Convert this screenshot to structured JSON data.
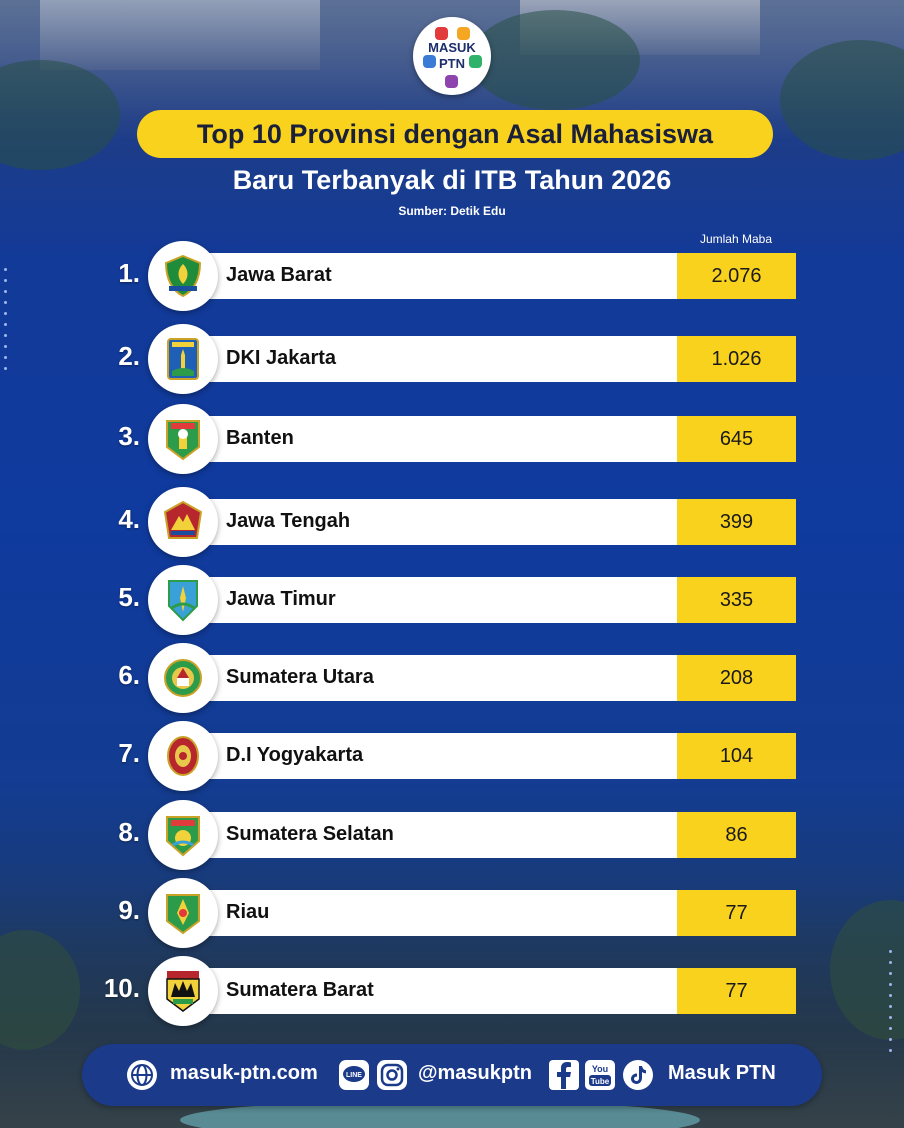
{
  "logo": {
    "line1": "MASUK",
    "line2": "PTN"
  },
  "title_line1": "Top 10 Provinsi dengan Asal Mahasiswa",
  "title_line2": "Baru Terbanyak di ITB Tahun 2026",
  "source": "Sumber: Detik Edu",
  "column_header": "Jumlah Maba",
  "rows": [
    {
      "rank": "1.",
      "name": "Jawa Barat",
      "value_text": "2.076",
      "emblem": "jawa-barat-emblem"
    },
    {
      "rank": "2.",
      "name": "DKI Jakarta",
      "value_text": "1.026",
      "emblem": "dki-jakarta-emblem"
    },
    {
      "rank": "3.",
      "name": "Banten",
      "value_text": "645",
      "emblem": "banten-emblem"
    },
    {
      "rank": "4.",
      "name": "Jawa Tengah",
      "value_text": "399",
      "emblem": "jawa-tengah-emblem"
    },
    {
      "rank": "5.",
      "name": "Jawa Timur",
      "value_text": "335",
      "emblem": "jawa-timur-emblem"
    },
    {
      "rank": "6.",
      "name": "Sumatera Utara",
      "value_text": "208",
      "emblem": "sumatera-utara-emblem"
    },
    {
      "rank": "7.",
      "name": "D.I Yogyakarta",
      "value_text": "104",
      "emblem": "yogyakarta-emblem"
    },
    {
      "rank": "8.",
      "name": "Sumatera Selatan",
      "value_text": "86",
      "emblem": "sumatera-selatan-emblem"
    },
    {
      "rank": "9.",
      "name": "Riau",
      "value_text": "77",
      "emblem": "riau-emblem"
    },
    {
      "rank": "10.",
      "name": "Sumatera Barat",
      "value_text": "77",
      "emblem": "sumatera-barat-emblem"
    }
  ],
  "chart_data": {
    "type": "table",
    "title": "Top 10 Provinsi dengan Asal Mahasiswa Baru Terbanyak di ITB Tahun 2026",
    "columns": [
      "Provinsi",
      "Jumlah Maba"
    ],
    "categories": [
      "Jawa Barat",
      "DKI Jakarta",
      "Banten",
      "Jawa Tengah",
      "Jawa Timur",
      "Sumatera Utara",
      "D.I Yogyakarta",
      "Sumatera Selatan",
      "Riau",
      "Sumatera Barat"
    ],
    "values": [
      2076,
      1026,
      645,
      399,
      335,
      208,
      104,
      86,
      77,
      77
    ]
  },
  "footer": {
    "website": "masuk-ptn.com",
    "handle": "@masukptn",
    "brand": "Masuk PTN",
    "icons": [
      "globe-icon",
      "line-icon",
      "instagram-icon",
      "facebook-icon",
      "youtube-icon",
      "tiktok-icon"
    ]
  },
  "colors": {
    "accent_yellow": "#f9d21d",
    "background_blue": "#123a98",
    "footer_blue": "#1b3a8a"
  }
}
